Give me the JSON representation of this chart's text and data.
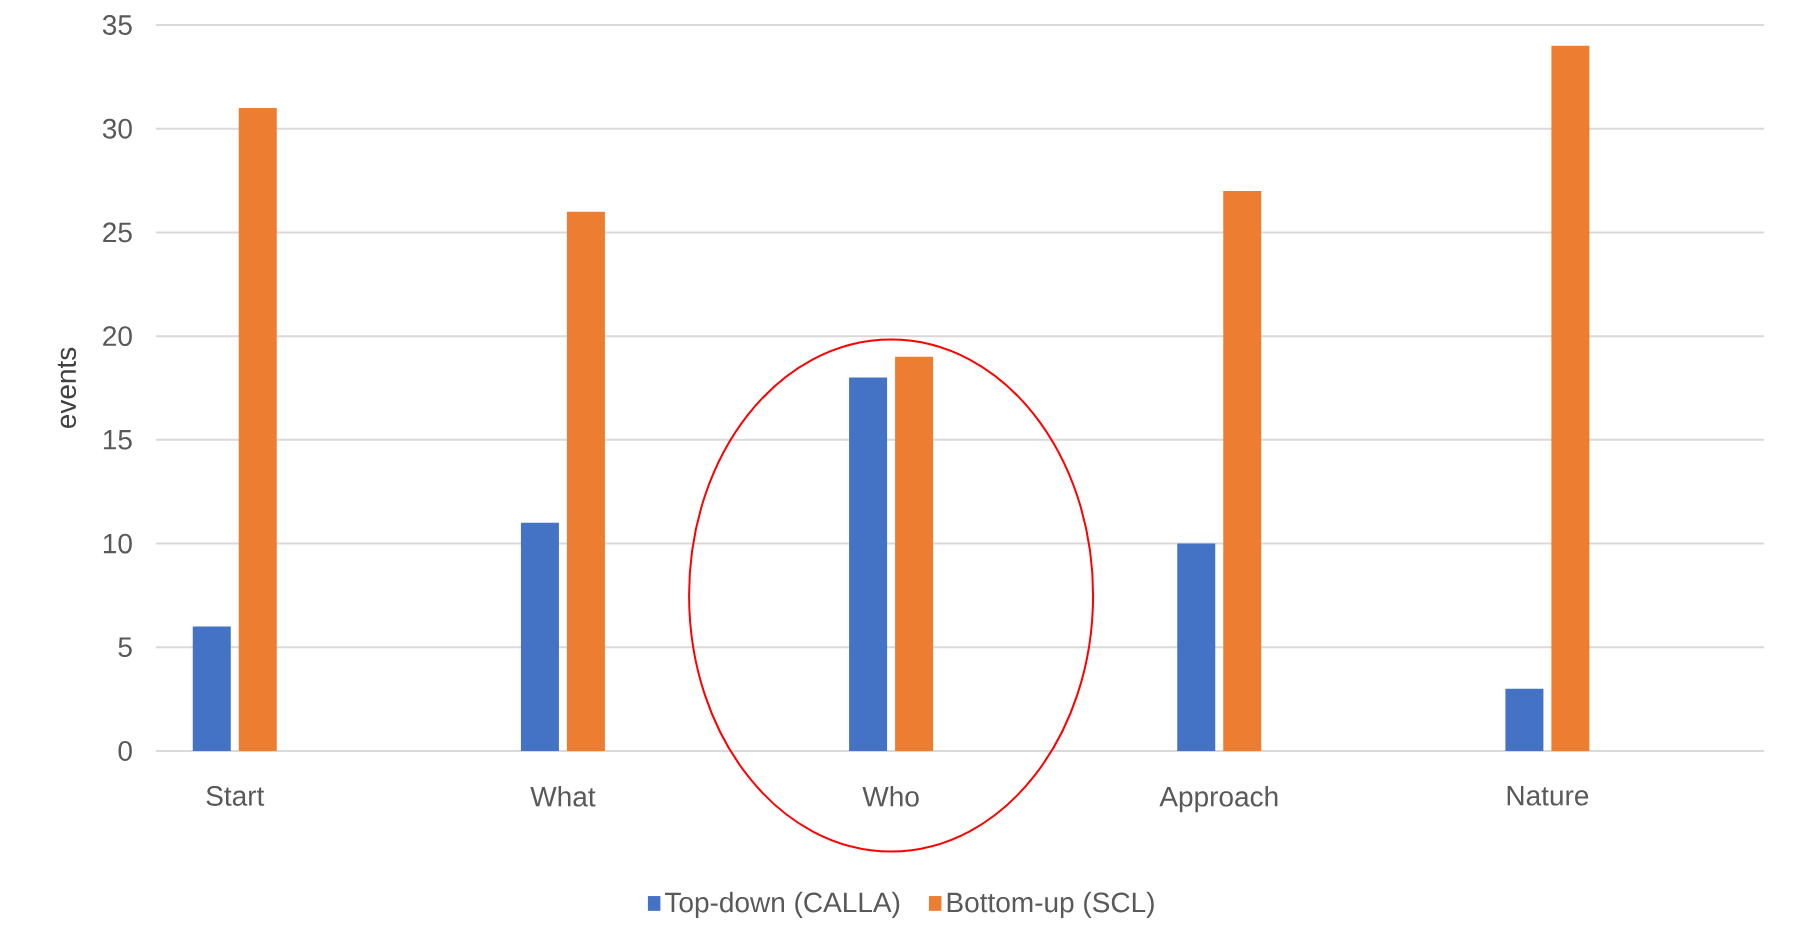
{
  "chart_data": {
    "type": "bar",
    "ylabel": "events",
    "categories": [
      "Start",
      "What",
      "Who",
      "Approach",
      "Nature"
    ],
    "series": [
      {
        "name": "Top-down (CALLA)",
        "color": "#4472c4",
        "values": [
          6,
          11,
          18,
          10,
          3
        ]
      },
      {
        "name": "Bottom-up (SCL)",
        "color": "#ed7d31",
        "values": [
          31,
          26,
          19,
          27,
          34
        ]
      }
    ],
    "ylim": [
      0,
      35
    ],
    "yticks": [
      0,
      5,
      10,
      15,
      20,
      25,
      30,
      35
    ],
    "grid": "y",
    "legend": "bottom"
  }
}
